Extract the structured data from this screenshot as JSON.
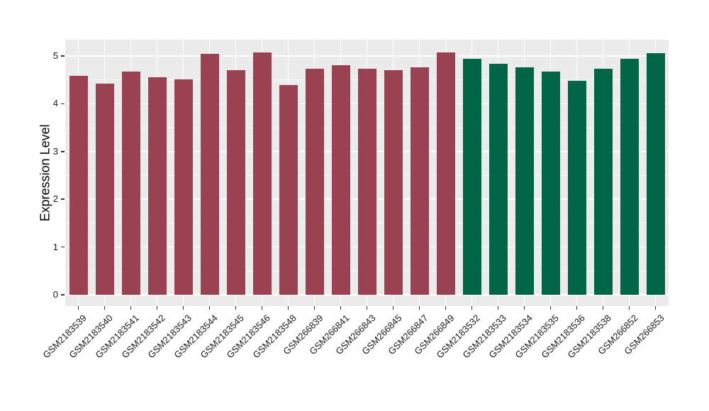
{
  "style": {
    "page_background": "#FFFFFF",
    "panel_background": "#EBEBEB",
    "grid_major_color": "#FFFFFF",
    "grid_minor_color": "rgba(255,255,255,0.65)",
    "tick_mark_color": "#333333",
    "axis_text_color": "#1A1A1A",
    "axis_title_color": "#000000"
  },
  "chart_data": {
    "type": "bar",
    "title": "",
    "xlabel": "",
    "ylabel": "Expression Level",
    "ylim": [
      0,
      5
    ],
    "yticks": [
      0,
      1,
      2,
      3,
      4,
      5
    ],
    "minor_grid_step": 0.5,
    "grid": "major and minor horizontal white lines, vertical white line at each bar center, on gray panel",
    "legend_position": "none",
    "x_tick_rotation_deg": 45,
    "categories": [
      "GSM2183539",
      "GSM2183540",
      "GSM2183541",
      "GSM2183542",
      "GSM2183543",
      "GSM2183544",
      "GSM2183545",
      "GSM2183546",
      "GSM2183548",
      "GSM266839",
      "GSM266841",
      "GSM266843",
      "GSM266845",
      "GSM266847",
      "GSM266849",
      "GSM2183532",
      "GSM2183533",
      "GSM2183534",
      "GSM2183535",
      "GSM2183536",
      "GSM2183538",
      "GSM266852",
      "GSM266853"
    ],
    "values": [
      4.59,
      4.42,
      4.68,
      4.55,
      4.51,
      5.05,
      4.7,
      5.07,
      4.39,
      4.74,
      4.8,
      4.74,
      4.71,
      4.77,
      5.07,
      4.94,
      4.84,
      4.77,
      4.67,
      4.48,
      4.74,
      4.94,
      5.06
    ],
    "group_colors": [
      "#9A4152",
      "#006647"
    ],
    "bar_groups": [
      0,
      0,
      0,
      0,
      0,
      0,
      0,
      0,
      0,
      0,
      0,
      0,
      0,
      0,
      0,
      1,
      1,
      1,
      1,
      1,
      1,
      1,
      1
    ]
  }
}
